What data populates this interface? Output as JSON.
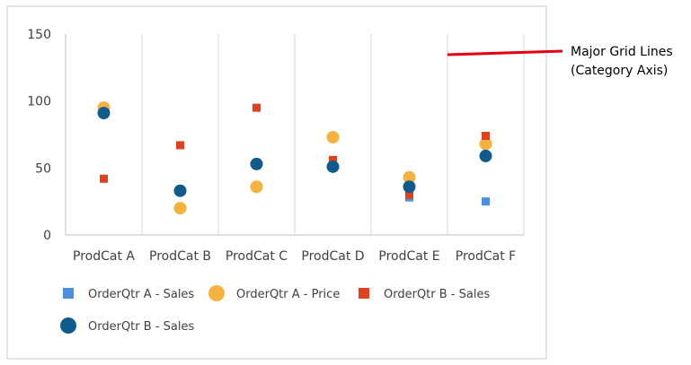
{
  "chart_data": {
    "type": "scatter",
    "categories": [
      "ProdCat A",
      "ProdCat B",
      "ProdCat C",
      "ProdCat D",
      "ProdCat E",
      "ProdCat F"
    ],
    "ylim": [
      0,
      150
    ],
    "yticks": [
      0,
      50,
      100,
      150
    ],
    "grid": "vertical major gridlines on category axis",
    "legend_position": "bottom",
    "series": [
      {
        "name": "OrderQtr A - Sales",
        "marker": "square",
        "size": "small",
        "color": "#4a90e2",
        "values": [
          null,
          33,
          52,
          55,
          28,
          25
        ]
      },
      {
        "name": "OrderQtr A - Price",
        "marker": "circle",
        "size": "medium",
        "color": "#f6b23f",
        "values": [
          95,
          20,
          36,
          73,
          43,
          68
        ]
      },
      {
        "name": "OrderQtr B - Sales",
        "marker": "square",
        "size": "small",
        "color": "#e1401c",
        "values": [
          42,
          67,
          95,
          56,
          30,
          74
        ]
      },
      {
        "name": "OrderQtr B - Sales",
        "marker": "circle",
        "size": "medium",
        "color": "#0f5c8c",
        "values": [
          91,
          33,
          53,
          51,
          36,
          59
        ]
      }
    ]
  },
  "annotation": {
    "text_line1": "Major Grid Lines",
    "text_line2": "(Category Axis)",
    "line_color": "#e3000f"
  },
  "colors": {
    "border": "#c8c8c8",
    "gridline": "#d9d9d9",
    "axis": "#bfbfbf"
  }
}
